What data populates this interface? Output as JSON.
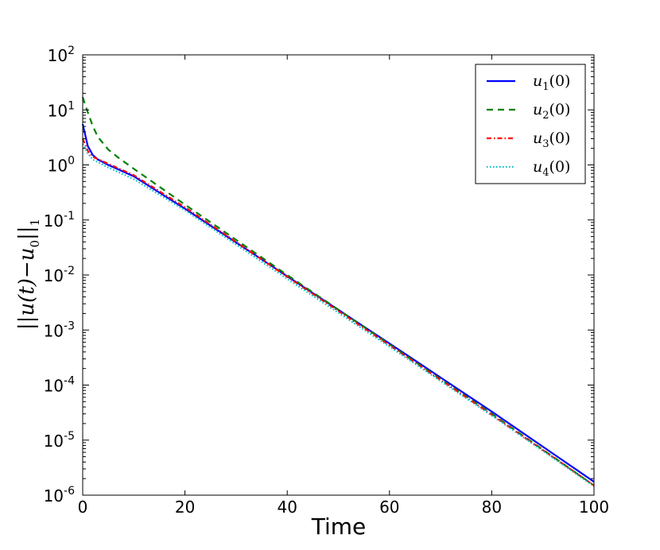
{
  "chart_data": {
    "type": "line",
    "title": "",
    "xlabel": "Time",
    "ylabel": "||u(t)−u0||1",
    "ylabel_parts": {
      "pre": "||u(t)−u",
      "sub0": "0",
      "mid": "||",
      "sub1": "1"
    },
    "xlim": [
      0,
      100
    ],
    "ylim": [
      1e-06,
      100
    ],
    "yscale": "log",
    "grid": false,
    "legend_position": "top-right",
    "x_ticks": [
      "0",
      "20",
      "40",
      "60",
      "80",
      "100"
    ],
    "x_tick_values": [
      0,
      20,
      40,
      60,
      80,
      100
    ],
    "y_ticks": [
      {
        "base": "10",
        "exp": "-6",
        "value": 1e-06
      },
      {
        "base": "10",
        "exp": "-5",
        "value": 1e-05
      },
      {
        "base": "10",
        "exp": "-4",
        "value": 0.0001
      },
      {
        "base": "10",
        "exp": "-3",
        "value": 0.001
      },
      {
        "base": "10",
        "exp": "-2",
        "value": 0.01
      },
      {
        "base": "10",
        "exp": "-1",
        "value": 0.1
      },
      {
        "base": "10",
        "exp": "0",
        "value": 1
      },
      {
        "base": "10",
        "exp": "1",
        "value": 10
      },
      {
        "base": "10",
        "exp": "2",
        "value": 100
      }
    ],
    "series": [
      {
        "name": "u1(0)",
        "label_base": "u",
        "label_sub": "1",
        "label_rest": "(0)",
        "color": "#0000ff",
        "dash": "",
        "x": [
          0,
          0.5,
          1,
          2,
          3,
          5,
          10,
          20,
          40,
          60,
          80,
          100
        ],
        "y": [
          5.5,
          3.5,
          2.2,
          1.5,
          1.25,
          1.0,
          0.62,
          0.16,
          0.0095,
          0.00057,
          3.3e-05,
          1.75e-06
        ]
      },
      {
        "name": "u2(0)",
        "label_base": "u",
        "label_sub": "2",
        "label_rest": "(0)",
        "color": "#008000",
        "dash": "8,6",
        "x": [
          0,
          1,
          2,
          3,
          5,
          7,
          10,
          20,
          40,
          60,
          80,
          100
        ],
        "y": [
          17,
          9,
          5,
          3.2,
          1.9,
          1.35,
          0.85,
          0.19,
          0.01,
          0.00055,
          3e-05,
          1.5e-06
        ]
      },
      {
        "name": "u3(0)",
        "label_base": "u",
        "label_sub": "3",
        "label_rest": "(0)",
        "color": "#ff0000",
        "dash": "6,3,1.5,3",
        "x": [
          0,
          1,
          2,
          5,
          10,
          20,
          40,
          60,
          80,
          100
        ],
        "y": [
          3.0,
          1.8,
          1.4,
          1.05,
          0.65,
          0.17,
          0.0093,
          0.00053,
          2.9e-05,
          1.5e-06
        ]
      },
      {
        "name": "u4(0)",
        "label_base": "u",
        "label_sub": "4",
        "label_rest": "(0)",
        "color": "#00bfbf",
        "dash": "1.5,2.5",
        "x": [
          0,
          1,
          2,
          5,
          10,
          20,
          40,
          60,
          80,
          100
        ],
        "y": [
          2.4,
          1.6,
          1.25,
          0.9,
          0.55,
          0.15,
          0.0085,
          0.0005,
          2.8e-05,
          1.45e-06
        ]
      }
    ]
  }
}
